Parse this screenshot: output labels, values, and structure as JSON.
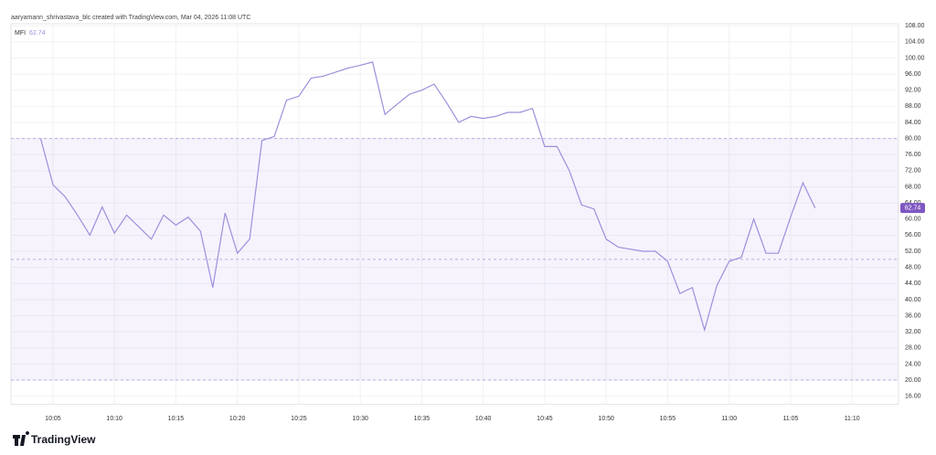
{
  "chart_data": {
    "type": "line",
    "header": "aaryamann_shrivastava_blc created with TradingView.com, Mar 04, 2026 11:08 UTC",
    "brand": "TradingView",
    "series": [
      {
        "name": "MFI",
        "color": "#9d8fdb",
        "values": [
          80,
          68.5,
          65.5,
          61,
          56,
          63,
          56.5,
          61,
          58,
          55,
          61,
          58.5,
          60.5,
          57,
          43,
          61.5,
          51.5,
          55,
          79.5,
          80.5,
          89.5,
          90.5,
          95,
          95.5,
          96.5,
          97.5,
          98.2,
          99,
          86,
          88.5,
          91,
          92,
          93.5,
          89,
          84,
          85.5,
          85,
          85.5,
          86.5,
          86.5,
          87.5,
          78,
          78,
          72,
          63.5,
          62.5,
          55,
          53,
          52.5,
          52,
          52,
          49.5,
          41.5,
          43,
          32.5,
          43.5,
          49.5,
          50.5,
          60,
          51.5,
          51.5,
          60.5,
          69,
          62.74,
          null,
          null,
          null
        ]
      }
    ],
    "categories": [
      null,
      "10:05",
      null,
      null,
      null,
      null,
      "10:10",
      null,
      null,
      null,
      null,
      "10:15",
      null,
      null,
      null,
      null,
      "10:20",
      null,
      null,
      null,
      null,
      "10:25",
      null,
      null,
      null,
      null,
      "10:30",
      null,
      null,
      null,
      null,
      "10:35",
      null,
      null,
      null,
      null,
      "10:40",
      null,
      null,
      null,
      null,
      "10:45",
      null,
      null,
      null,
      null,
      "10:50",
      null,
      null,
      null,
      null,
      "10:55",
      null,
      null,
      null,
      null,
      "11:00",
      null,
      null,
      null,
      null,
      "11:05",
      null,
      null,
      null,
      null,
      "11:10"
    ],
    "bands": {
      "upper": 80,
      "middle": 50,
      "lower": 20
    },
    "ylim": [
      14,
      108.5
    ],
    "yticks": [
      {
        "value": 16,
        "label": "16.00"
      },
      {
        "value": 20,
        "label": "20.00"
      },
      {
        "value": 24,
        "label": "24.00"
      },
      {
        "value": 28,
        "label": "28.00"
      },
      {
        "value": 32,
        "label": "32.00"
      },
      {
        "value": 36,
        "label": "36.00"
      },
      {
        "value": 40,
        "label": "40.00"
      },
      {
        "value": 44,
        "label": "44.00"
      },
      {
        "value": 48,
        "label": "48.00"
      },
      {
        "value": 52,
        "label": "52.00"
      },
      {
        "value": 56,
        "label": "56.00"
      },
      {
        "value": 60,
        "label": "60.00"
      },
      {
        "value": 64,
        "label": "64.00"
      },
      {
        "value": 68,
        "label": "68.00"
      },
      {
        "value": 72,
        "label": "72.00"
      },
      {
        "value": 76,
        "label": "76.00"
      },
      {
        "value": 80,
        "label": "80.00"
      },
      {
        "value": 84,
        "label": "84.00"
      },
      {
        "value": 88,
        "label": "88.00"
      },
      {
        "value": 92,
        "label": "92.00"
      },
      {
        "value": 96,
        "label": "96.00"
      },
      {
        "value": 100,
        "label": "100.00"
      },
      {
        "value": 104,
        "label": "104.00"
      },
      {
        "value": 108,
        "label": "108.00"
      }
    ],
    "grid": true
  }
}
